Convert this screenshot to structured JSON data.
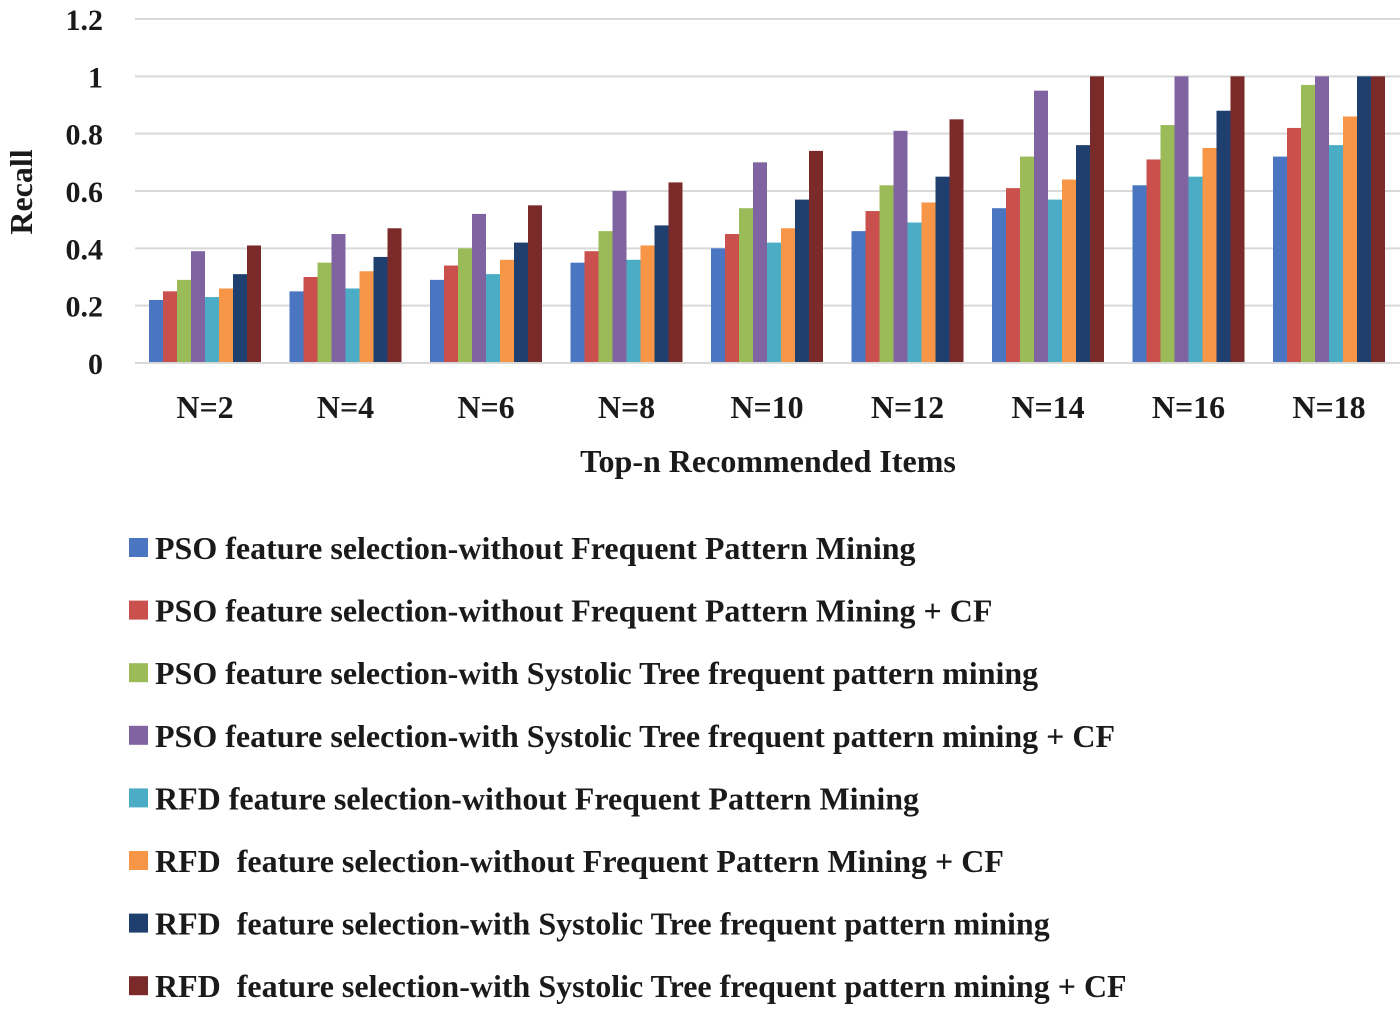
{
  "chart_data": {
    "type": "bar",
    "xlabel": "Top-n Recommended Items",
    "ylabel": "Recall",
    "ylim": [
      0,
      1.2
    ],
    "yticks": [
      "0",
      "0.2",
      "0.4",
      "0.6",
      "0.8",
      "1",
      "1.2"
    ],
    "grid": "horizontal",
    "legend_position": "bottom",
    "categories": [
      "N=2",
      "N=4",
      "N=6",
      "N=8",
      "N=10",
      "N=12",
      "N=14",
      "N=16",
      "N=18"
    ],
    "series": [
      {
        "name": "PSO feature selection-without Frequent Pattern Mining",
        "color": "#4a76c1",
        "values": [
          0.22,
          0.25,
          0.29,
          0.35,
          0.4,
          0.46,
          0.54,
          0.62,
          0.72
        ]
      },
      {
        "name": "PSO feature selection-without Frequent Pattern Mining + CF",
        "color": "#c9504c",
        "values": [
          0.25,
          0.3,
          0.34,
          0.39,
          0.45,
          0.53,
          0.61,
          0.71,
          0.82
        ]
      },
      {
        "name": "PSO feature selection-with Systolic Tree frequent pattern mining",
        "color": "#9bbb59",
        "values": [
          0.29,
          0.35,
          0.4,
          0.46,
          0.54,
          0.62,
          0.72,
          0.83,
          0.97
        ]
      },
      {
        "name": "PSO feature selection-with Systolic Tree frequent pattern mining + CF",
        "color": "#8064a2",
        "values": [
          0.39,
          0.45,
          0.52,
          0.6,
          0.7,
          0.81,
          0.95,
          1.0,
          1.0
        ]
      },
      {
        "name": "RFD feature selection-without Frequent Pattern Mining",
        "color": "#4bacc6",
        "values": [
          0.23,
          0.26,
          0.31,
          0.36,
          0.42,
          0.49,
          0.57,
          0.65,
          0.76
        ]
      },
      {
        "name": "RFD  feature selection-without Frequent Pattern Mining + CF",
        "color": "#f79646",
        "values": [
          0.26,
          0.32,
          0.36,
          0.41,
          0.47,
          0.56,
          0.64,
          0.75,
          0.86
        ]
      },
      {
        "name": "RFD  feature selection-with Systolic Tree frequent pattern mining",
        "color": "#1f3f6e",
        "values": [
          0.31,
          0.37,
          0.42,
          0.48,
          0.57,
          0.65,
          0.76,
          0.88,
          1.0
        ]
      },
      {
        "name": "RFD  feature selection-with Systolic Tree frequent pattern mining + CF",
        "color": "#7b2a2a",
        "values": [
          0.41,
          0.47,
          0.55,
          0.63,
          0.74,
          0.85,
          1.0,
          1.0,
          1.0
        ]
      }
    ]
  }
}
